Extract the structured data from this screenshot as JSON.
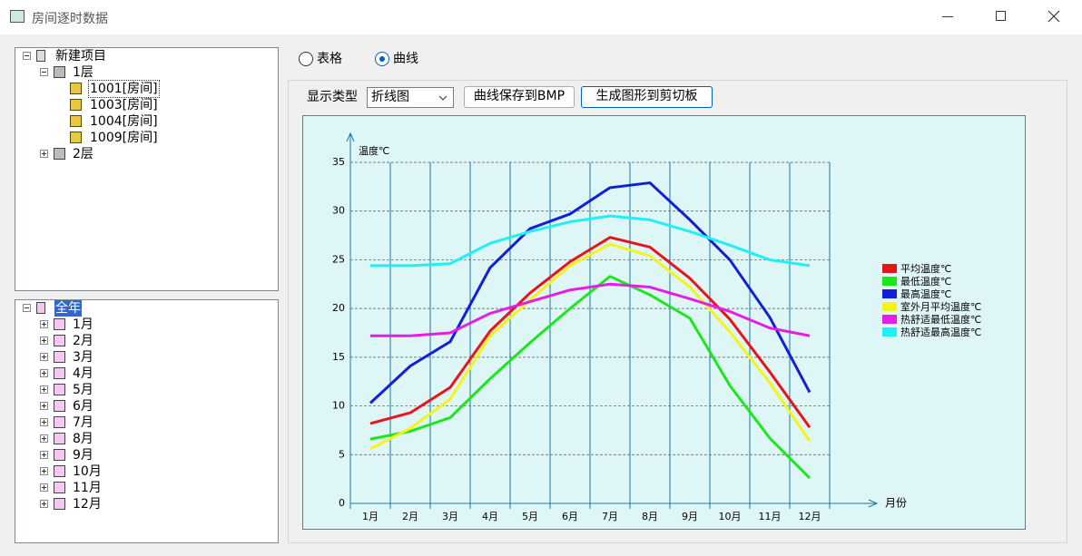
{
  "window": {
    "title": "房间逐时数据"
  },
  "project_tree": {
    "label": "新建项目",
    "expanded": true,
    "children": [
      {
        "label": "1层",
        "expanded": true,
        "children": [
          {
            "label": "1001[房间]",
            "selected": true
          },
          {
            "label": "1003[房间]"
          },
          {
            "label": "1004[房间]"
          },
          {
            "label": "1009[房间]"
          }
        ]
      },
      {
        "label": "2层",
        "expanded": false
      }
    ]
  },
  "period_tree": {
    "label": "全年",
    "expanded": true,
    "selected": true,
    "children": [
      {
        "label": "1月",
        "expanded": false
      },
      {
        "label": "2月",
        "expanded": false
      },
      {
        "label": "3月",
        "expanded": false
      },
      {
        "label": "4月",
        "expanded": false
      },
      {
        "label": "5月",
        "expanded": false
      },
      {
        "label": "6月",
        "expanded": false
      },
      {
        "label": "7月",
        "expanded": false
      },
      {
        "label": "8月",
        "expanded": false
      },
      {
        "label": "9月",
        "expanded": false
      },
      {
        "label": "10月",
        "expanded": false
      },
      {
        "label": "11月",
        "expanded": false
      },
      {
        "label": "12月",
        "expanded": false
      }
    ]
  },
  "view_options": [
    {
      "label": "表格",
      "checked": false
    },
    {
      "label": "曲线",
      "checked": true
    }
  ],
  "toolbar": {
    "display_type_label": "显示类型",
    "display_type": "折线图",
    "buttons": [
      "曲线保存到BMP",
      "生成图形到剪切板"
    ]
  },
  "chart_data": {
    "type": "line",
    "y_label": "温度℃",
    "x_label": "月份",
    "categories": [
      "1月",
      "2月",
      "3月",
      "4月",
      "5月",
      "6月",
      "7月",
      "8月",
      "9月",
      "10月",
      "11月",
      "12月"
    ],
    "ylim": [
      0,
      35
    ],
    "yticks": [
      0,
      5,
      10,
      15,
      20,
      25,
      30,
      35
    ],
    "grid": true,
    "legend": "right",
    "series": [
      {
        "name": "平均温度℃",
        "color": "#e8141c",
        "values": [
          8.2,
          9.3,
          11.9,
          17.7,
          21.6,
          24.8,
          27.3,
          26.3,
          23.1,
          18.9,
          13.5,
          7.8
        ]
      },
      {
        "name": "最低温度℃",
        "color": "#1ee61e",
        "values": [
          6.6,
          7.4,
          8.8,
          12.8,
          16.5,
          20.0,
          23.3,
          21.4,
          19.0,
          12.1,
          6.7,
          2.6
        ]
      },
      {
        "name": "最高温度℃",
        "color": "#1020d8",
        "values": [
          10.3,
          14.1,
          16.6,
          24.2,
          28.2,
          29.7,
          32.4,
          32.9,
          29.1,
          25.0,
          19.1,
          11.4
        ]
      },
      {
        "name": "室外月平均温度℃",
        "color": "#f4f41a",
        "values": [
          5.6,
          7.7,
          10.7,
          17.2,
          20.9,
          24.4,
          26.6,
          25.4,
          22.2,
          17.6,
          12.4,
          6.4
        ]
      },
      {
        "name": "热舒适最低温度℃",
        "color": "#e41ee4",
        "values": [
          17.2,
          17.2,
          17.5,
          19.5,
          20.7,
          21.9,
          22.5,
          22.2,
          21.0,
          19.7,
          18.0,
          17.2
        ]
      },
      {
        "name": "热舒适最高温度℃",
        "color": "#1ef0f4",
        "values": [
          24.4,
          24.4,
          24.6,
          26.7,
          27.9,
          28.9,
          29.5,
          29.1,
          27.9,
          26.5,
          25.0,
          24.4
        ]
      }
    ]
  }
}
